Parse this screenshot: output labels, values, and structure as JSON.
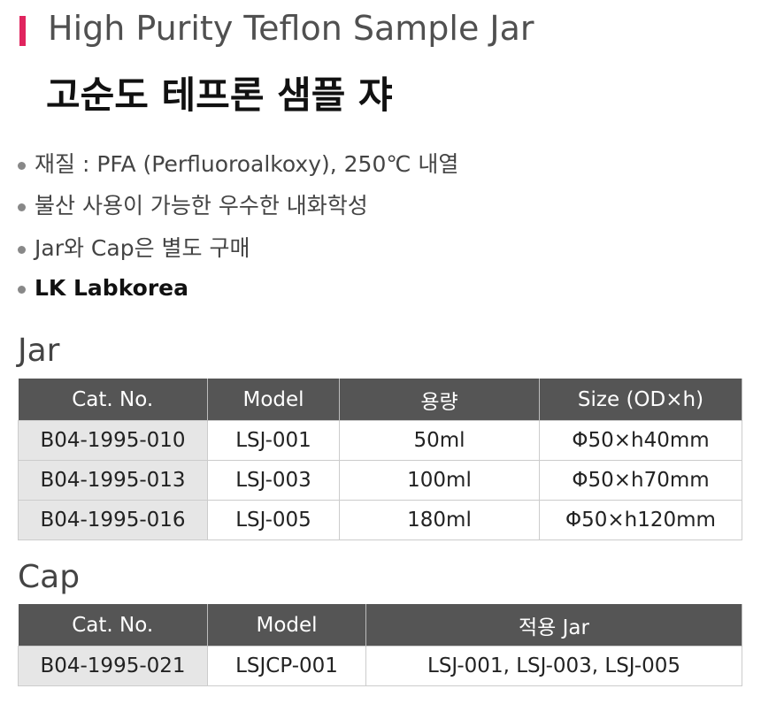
{
  "header": {
    "title_en": "High Purity Teflon Sample Jar",
    "title_ko": "고순도 테프론 샘플 쟈"
  },
  "bullets": [
    "재질 : PFA (Perfluoroalkoxy), 250℃ 내열",
    "불산 사용이 가능한 우수한 내화학성",
    "Jar와 Cap은 별도 구매",
    "LK Labkorea"
  ],
  "jar": {
    "heading": "Jar",
    "columns": [
      "Cat. No.",
      "Model",
      "용량",
      "Size (OD×h)"
    ],
    "rows": [
      [
        "B04-1995-010",
        "LSJ-001",
        "50ml",
        "Φ50×h40mm"
      ],
      [
        "B04-1995-013",
        "LSJ-003",
        "100ml",
        "Φ50×h70mm"
      ],
      [
        "B04-1995-016",
        "LSJ-005",
        "180ml",
        "Φ50×h120mm"
      ]
    ]
  },
  "cap": {
    "heading": "Cap",
    "columns": [
      "Cat. No.",
      "Model",
      "적용 Jar"
    ],
    "rows": [
      [
        "B04-1995-021",
        "LSJCP-001",
        "LSJ-001, LSJ-003, LSJ-005"
      ]
    ]
  }
}
